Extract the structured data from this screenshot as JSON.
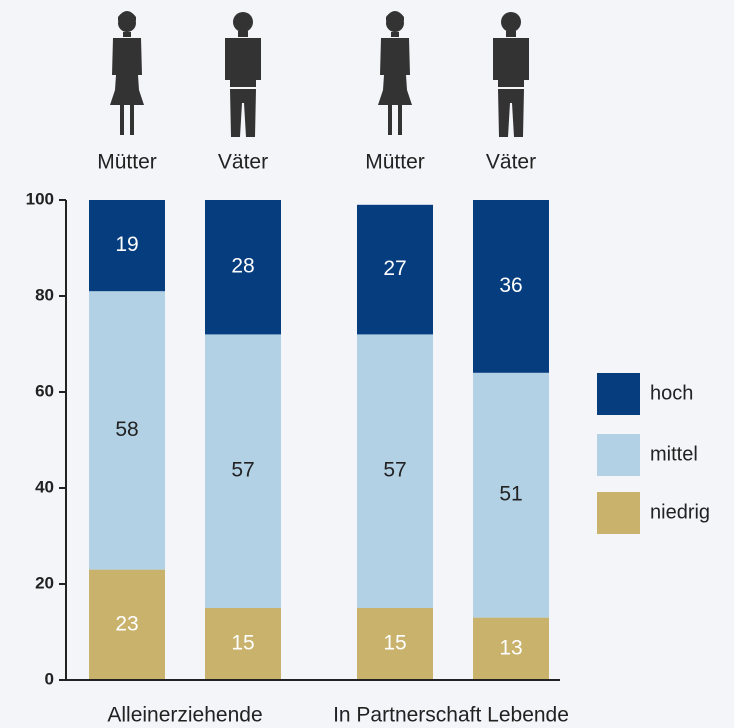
{
  "chart_data": {
    "type": "stacked_bar",
    "categories": [
      "Mütter",
      "Väter",
      "Mütter",
      "Väter"
    ],
    "groups": [
      {
        "name": "Alleinerziehende",
        "members": [
          0,
          1
        ]
      },
      {
        "name": "In Partnerschaft Lebende",
        "members": [
          2,
          3
        ]
      }
    ],
    "series": [
      {
        "name": "niedrig",
        "color": "#c9b26c",
        "values": [
          23,
          15,
          15,
          13
        ]
      },
      {
        "name": "mittel",
        "color": "#b3d1e5",
        "values": [
          58,
          57,
          57,
          51
        ]
      },
      {
        "name": "hoch",
        "color": "#063d7e",
        "values": [
          19,
          28,
          27,
          36
        ]
      }
    ],
    "ylim": [
      0,
      100
    ],
    "yticks": [
      0,
      20,
      40,
      60,
      80,
      100
    ],
    "legend": "right"
  }
}
